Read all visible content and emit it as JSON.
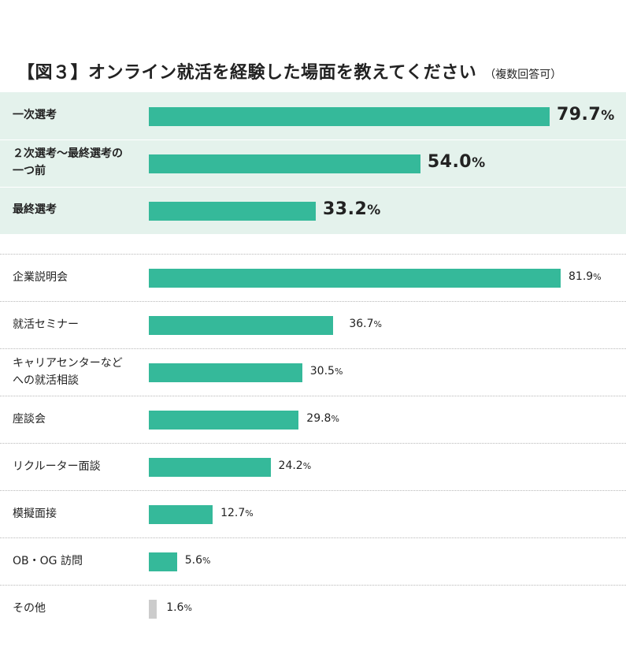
{
  "title": "【図３】オンライン就活を経験した場面を教えてください",
  "subtitle": "（複数回答可）",
  "colors": {
    "bar": "#35b99a",
    "bar_other": "#cccccc",
    "highlight_bg": "#e4f2ec"
  },
  "chart_data": {
    "type": "bar",
    "orientation": "horizontal",
    "title": "【図３】オンライン就活を経験した場面を教えてください",
    "subtitle": "（複数回答可）",
    "unit": "%",
    "xlim": [
      0,
      100
    ],
    "groups": [
      {
        "highlighted": true,
        "items": [
          {
            "label_lines": [
              "一次選考"
            ],
            "value": 79.7,
            "display": "79.7",
            "unit": "%"
          },
          {
            "label_lines": [
              "２次選考～最終選考の",
              "一つ前"
            ],
            "value": 54.0,
            "display": "54.0",
            "unit": "%"
          },
          {
            "label_lines": [
              "最終選考"
            ],
            "value": 33.2,
            "display": "33.2",
            "unit": "%"
          }
        ]
      },
      {
        "highlighted": false,
        "items": [
          {
            "label_lines": [
              "企業説明会"
            ],
            "value": 81.9,
            "display": "81.9",
            "unit": "%"
          },
          {
            "label_lines": [
              "就活セミナー"
            ],
            "value": 36.7,
            "display": "36.7",
            "unit": "%"
          },
          {
            "label_lines": [
              "キャリアセンターなど",
              "への就活相談"
            ],
            "value": 30.5,
            "display": "30.5",
            "unit": "%"
          },
          {
            "label_lines": [
              "座談会"
            ],
            "value": 29.8,
            "display": "29.8",
            "unit": "%"
          },
          {
            "label_lines": [
              "リクルーター面談"
            ],
            "value": 24.2,
            "display": "24.2",
            "unit": "%"
          },
          {
            "label_lines": [
              "模擬面接"
            ],
            "value": 12.7,
            "display": "12.7",
            "unit": "%"
          },
          {
            "label_lines": [
              "OB・OG 訪問"
            ],
            "value": 5.6,
            "display": "5.6",
            "unit": "%"
          },
          {
            "label_lines": [
              "その他"
            ],
            "value": 1.6,
            "display": "1.6",
            "unit": "%",
            "muted": true
          }
        ]
      }
    ]
  }
}
